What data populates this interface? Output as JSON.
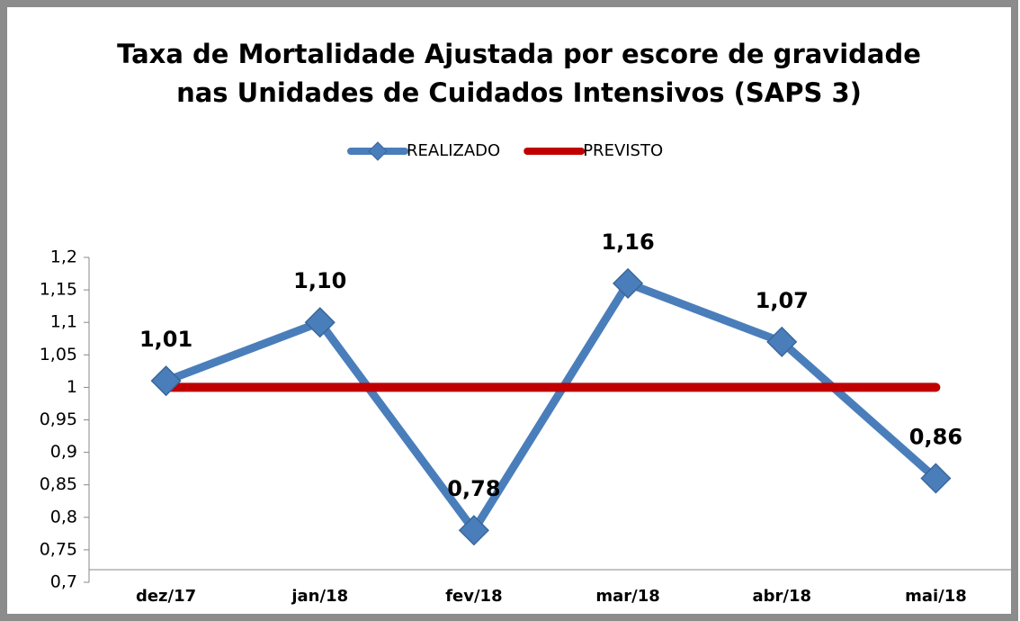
{
  "chart_data": {
    "type": "line",
    "title": [
      "Taxa de Mortalidade Ajustada por escore de gravidade",
      "nas Unidades de Cuidados Intensivos (SAPS 3)"
    ],
    "categories": [
      "dez/17",
      "jan/18",
      "fev/18",
      "mar/18",
      "abr/18",
      "mai/18"
    ],
    "series": [
      {
        "name": "REALIZADO",
        "color": "#4a7ebb",
        "marker": "diamond",
        "values": [
          1.01,
          1.1,
          0.78,
          1.16,
          1.07,
          0.86
        ],
        "value_labels": [
          "1,01",
          "1,10",
          "0,78",
          "1,16",
          "1,07",
          "0,86"
        ]
      },
      {
        "name": "PREVISTO",
        "color": "#c00000",
        "values": [
          1,
          1,
          1,
          1,
          1,
          1
        ]
      }
    ],
    "ylim": [
      0.7,
      1.2
    ],
    "yticks": [
      {
        "value": 0.7,
        "label": "0,7"
      },
      {
        "value": 0.75,
        "label": "0,75"
      },
      {
        "value": 0.8,
        "label": "0,8"
      },
      {
        "value": 0.85,
        "label": "0,85"
      },
      {
        "value": 0.9,
        "label": "0,9"
      },
      {
        "value": 0.95,
        "label": "0,95"
      },
      1,
      {
        "value": 1.05,
        "label": "1,05"
      },
      {
        "value": 1.1,
        "label": "1,1"
      },
      {
        "value": 1.15,
        "label": "1,15"
      },
      {
        "value": 1.2,
        "label": "1,2"
      }
    ],
    "legend": "top",
    "grid": false
  }
}
